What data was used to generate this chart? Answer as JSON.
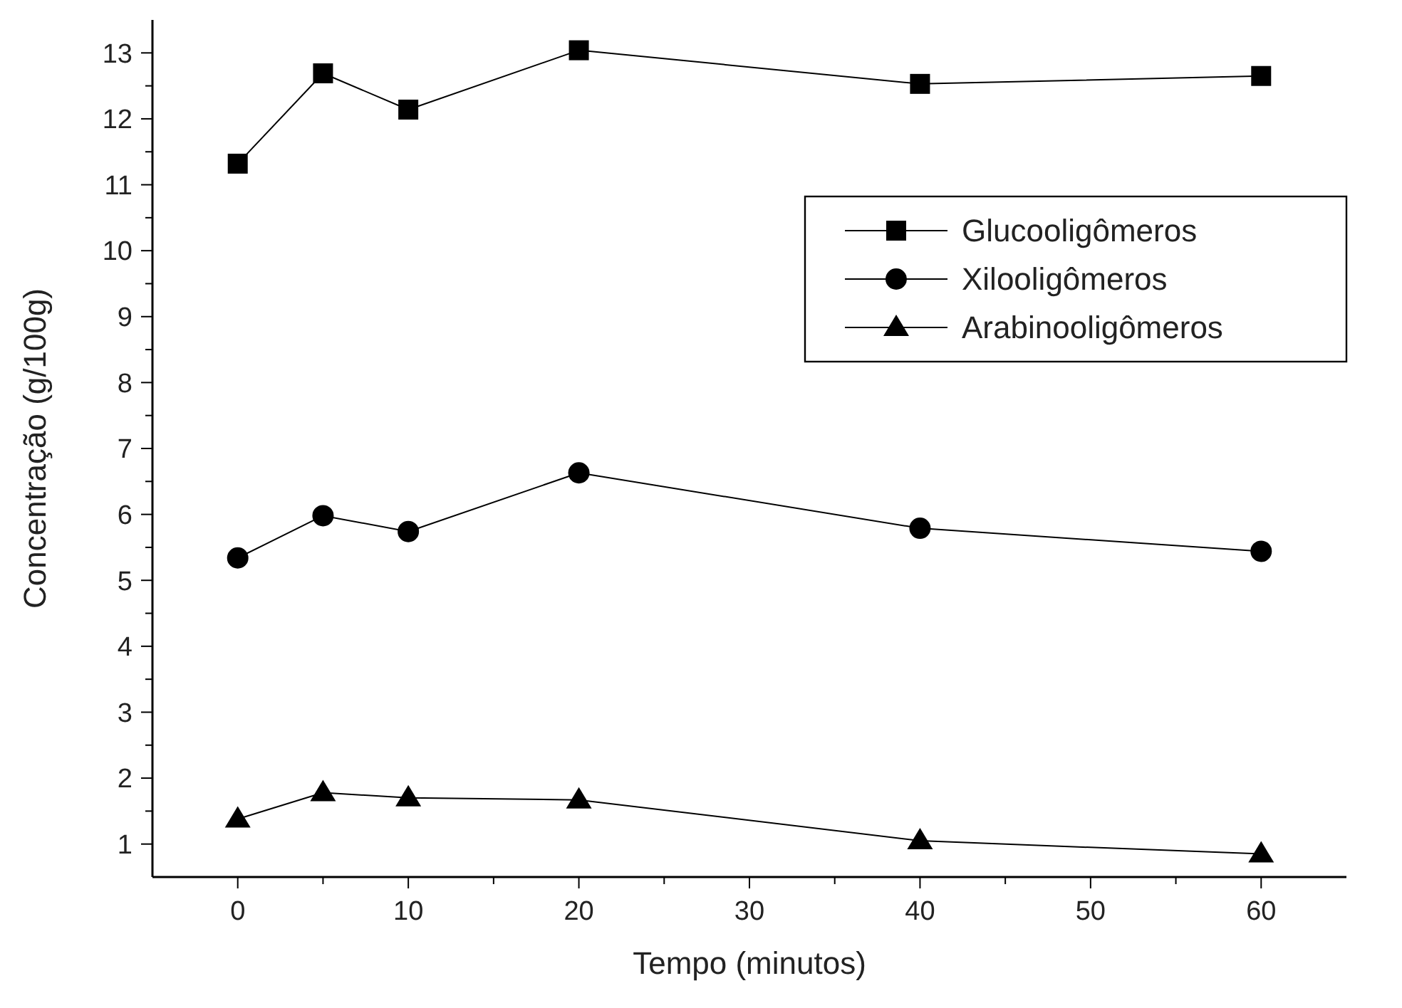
{
  "chart_data": {
    "type": "line",
    "xlabel": "Tempo (minutos)",
    "ylabel": "Concentração (g/100g)",
    "x": [
      0,
      5,
      10,
      20,
      40,
      60
    ],
    "series": [
      {
        "name": "Glucooligômeros",
        "color": "#000000",
        "marker": "square",
        "values": [
          11.32,
          12.69,
          12.14,
          13.04,
          12.53,
          12.65
        ]
      },
      {
        "name": "Xilooligômeros",
        "color": "#000000",
        "marker": "circle",
        "values": [
          5.34,
          5.98,
          5.74,
          6.63,
          5.79,
          5.44
        ]
      },
      {
        "name": "Arabinooligômeros",
        "color": "#000000",
        "marker": "triangle",
        "values": [
          1.38,
          1.78,
          1.7,
          1.67,
          1.05,
          0.85
        ]
      }
    ],
    "xlim": [
      -5,
      65
    ],
    "xticks": [
      0,
      {
        "value": 5,
        "label": null
      },
      10,
      {
        "value": 15,
        "label": null
      },
      20,
      {
        "value": 25,
        "label": null
      },
      30,
      {
        "value": 35,
        "label": null
      },
      40,
      {
        "value": 45,
        "label": null
      },
      50,
      {
        "value": 55,
        "label": null
      },
      60
    ],
    "ylim": [
      0.5,
      13.5
    ],
    "yticks": [
      1,
      {
        "value": 1.5,
        "label": null
      },
      2,
      {
        "value": 2.5,
        "label": null
      },
      3,
      {
        "value": 3.5,
        "label": null
      },
      4,
      {
        "value": 4.5,
        "label": null
      },
      5,
      {
        "value": 5.5,
        "label": null
      },
      6,
      {
        "value": 6.5,
        "label": null
      },
      7,
      {
        "value": 7.5,
        "label": null
      },
      8,
      {
        "value": 8.5,
        "label": null
      },
      9,
      {
        "value": 9.5,
        "label": null
      },
      10,
      {
        "value": 10.5,
        "label": null
      },
      11,
      {
        "value": 11.5,
        "label": null
      },
      12,
      {
        "value": 12.5,
        "label": null
      },
      13
    ],
    "grid": false,
    "legend": "top right",
    "line_style": "solid"
  }
}
